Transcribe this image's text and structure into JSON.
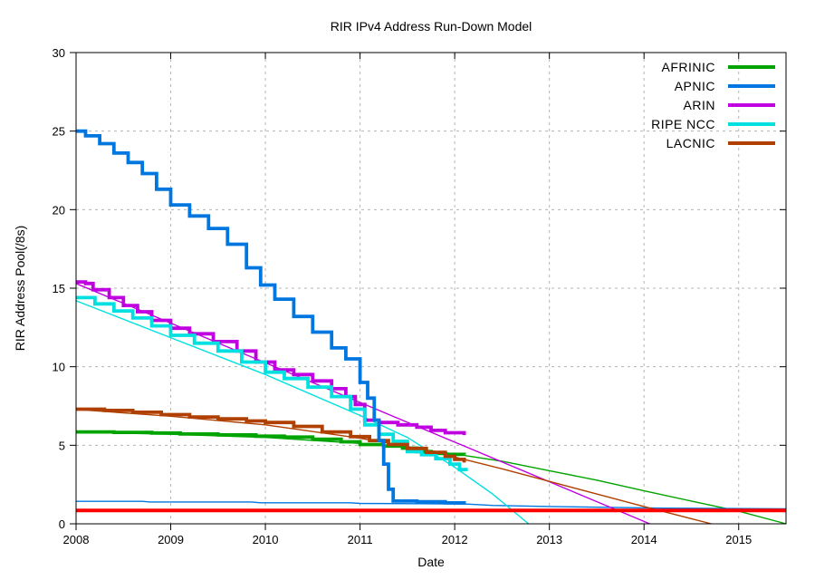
{
  "chart_data": {
    "type": "line",
    "title": "RIR IPv4 Address Run-Down Model",
    "xlabel": "Date",
    "ylabel": "RIR Address Pool(/8s)",
    "xlim": [
      2008,
      2015.5
    ],
    "ylim": [
      0,
      30
    ],
    "x_ticks": [
      2008,
      2009,
      2010,
      2011,
      2012,
      2013,
      2014,
      2015
    ],
    "y_ticks": [
      0,
      5,
      10,
      15,
      20,
      25,
      30
    ],
    "grid": "dashed-gray",
    "legend_position": "top-right-inside",
    "red_line": {
      "y": 0.85,
      "color": "#ff0000"
    },
    "series": [
      {
        "name": "AFRINIC",
        "color": "#00a400",
        "actual": [
          [
            2008,
            5.85
          ],
          [
            2008.4,
            5.82
          ],
          [
            2008.8,
            5.78
          ],
          [
            2009.1,
            5.72
          ],
          [
            2009.5,
            5.66
          ],
          [
            2009.9,
            5.58
          ],
          [
            2010.2,
            5.52
          ],
          [
            2010.5,
            5.38
          ],
          [
            2010.8,
            5.22
          ],
          [
            2011.0,
            5.05
          ],
          [
            2011.25,
            4.95
          ],
          [
            2011.45,
            4.82
          ],
          [
            2011.6,
            4.6
          ],
          [
            2011.75,
            4.48
          ],
          [
            2011.9,
            4.42
          ],
          [
            2012.1,
            4.4
          ]
        ],
        "model": [
          [
            2008,
            5.83
          ],
          [
            2009,
            5.7
          ],
          [
            2010,
            5.5
          ],
          [
            2011,
            5.12
          ],
          [
            2011.5,
            4.85
          ],
          [
            2012,
            4.45
          ],
          [
            2012.5,
            3.98
          ],
          [
            2013,
            3.38
          ],
          [
            2013.5,
            2.78
          ],
          [
            2014,
            2.1
          ],
          [
            2014.5,
            1.45
          ],
          [
            2015,
            0.8
          ],
          [
            2015.5,
            0
          ]
        ]
      },
      {
        "name": "APNIC",
        "color": "#0077e0",
        "actual": [
          [
            2008,
            25.0
          ],
          [
            2008.1,
            24.7
          ],
          [
            2008.25,
            24.2
          ],
          [
            2008.4,
            23.6
          ],
          [
            2008.55,
            23.0
          ],
          [
            2008.7,
            22.3
          ],
          [
            2008.85,
            21.3
          ],
          [
            2009.0,
            20.3
          ],
          [
            2009.2,
            19.6
          ],
          [
            2009.4,
            18.8
          ],
          [
            2009.6,
            17.8
          ],
          [
            2009.8,
            16.3
          ],
          [
            2009.95,
            15.2
          ],
          [
            2010.1,
            14.3
          ],
          [
            2010.3,
            13.2
          ],
          [
            2010.5,
            12.2
          ],
          [
            2010.7,
            11.2
          ],
          [
            2010.85,
            10.5
          ],
          [
            2011.0,
            9.0
          ],
          [
            2011.08,
            8.0
          ],
          [
            2011.15,
            6.6
          ],
          [
            2011.2,
            5.3
          ],
          [
            2011.25,
            3.8
          ],
          [
            2011.3,
            2.2
          ],
          [
            2011.35,
            1.45
          ],
          [
            2011.6,
            1.4
          ],
          [
            2011.9,
            1.33
          ],
          [
            2012.1,
            1.28
          ]
        ],
        "model": [
          [
            2008,
            1.43
          ],
          [
            2008.7,
            1.43
          ],
          [
            2008.78,
            1.39
          ],
          [
            2009.85,
            1.39
          ],
          [
            2009.95,
            1.34
          ],
          [
            2010.9,
            1.34
          ],
          [
            2011.0,
            1.3
          ],
          [
            2011.6,
            1.28
          ],
          [
            2012.15,
            1.25
          ],
          [
            2012.4,
            1.17
          ],
          [
            2013,
            1.1
          ],
          [
            2013.6,
            1.05
          ],
          [
            2014.2,
            1.0
          ],
          [
            2015.5,
            0.96
          ]
        ]
      },
      {
        "name": "ARIN",
        "color": "#c000e0",
        "actual": [
          [
            2008,
            15.4
          ],
          [
            2008.1,
            15.3
          ],
          [
            2008.18,
            14.9
          ],
          [
            2008.35,
            14.4
          ],
          [
            2008.5,
            13.9
          ],
          [
            2008.65,
            13.5
          ],
          [
            2008.8,
            12.95
          ],
          [
            2009.0,
            12.45
          ],
          [
            2009.2,
            12.1
          ],
          [
            2009.45,
            11.6
          ],
          [
            2009.7,
            11.0
          ],
          [
            2009.9,
            10.3
          ],
          [
            2010.1,
            9.8
          ],
          [
            2010.3,
            9.5
          ],
          [
            2010.5,
            9.1
          ],
          [
            2010.7,
            8.6
          ],
          [
            2010.85,
            8.1
          ],
          [
            2010.95,
            7.6
          ],
          [
            2011.05,
            6.6
          ],
          [
            2011.2,
            6.45
          ],
          [
            2011.4,
            6.3
          ],
          [
            2011.6,
            6.15
          ],
          [
            2011.75,
            5.95
          ],
          [
            2011.9,
            5.8
          ],
          [
            2012.1,
            5.65
          ]
        ],
        "model": [
          [
            2008,
            15.3
          ],
          [
            2014.06,
            0
          ]
        ]
      },
      {
        "name": "RIPE NCC",
        "color": "#00e0e0",
        "actual": [
          [
            2008,
            14.4
          ],
          [
            2008.2,
            14.0
          ],
          [
            2008.4,
            13.55
          ],
          [
            2008.6,
            13.1
          ],
          [
            2008.8,
            12.6
          ],
          [
            2009.0,
            12.0
          ],
          [
            2009.25,
            11.5
          ],
          [
            2009.5,
            11.0
          ],
          [
            2009.75,
            10.3
          ],
          [
            2010.0,
            9.65
          ],
          [
            2010.2,
            9.25
          ],
          [
            2010.45,
            8.7
          ],
          [
            2010.7,
            8.1
          ],
          [
            2010.9,
            7.3
          ],
          [
            2011.05,
            6.3
          ],
          [
            2011.2,
            5.7
          ],
          [
            2011.35,
            5.25
          ],
          [
            2011.5,
            4.6
          ],
          [
            2011.65,
            4.4
          ],
          [
            2011.8,
            4.15
          ],
          [
            2011.95,
            3.8
          ],
          [
            2012.05,
            3.45
          ],
          [
            2012.12,
            3.35
          ]
        ],
        "model": [
          [
            2008,
            14.2
          ],
          [
            2009,
            11.85
          ],
          [
            2010,
            9.5
          ],
          [
            2011,
            6.9
          ],
          [
            2011.5,
            5.5
          ],
          [
            2012,
            3.6
          ],
          [
            2012.4,
            1.9
          ],
          [
            2012.78,
            0
          ]
        ]
      },
      {
        "name": "LACNIC",
        "color": "#b04000",
        "actual": [
          [
            2008,
            7.3
          ],
          [
            2008.3,
            7.22
          ],
          [
            2008.6,
            7.1
          ],
          [
            2008.9,
            6.95
          ],
          [
            2009.2,
            6.8
          ],
          [
            2009.5,
            6.68
          ],
          [
            2009.8,
            6.55
          ],
          [
            2010.0,
            6.45
          ],
          [
            2010.3,
            6.2
          ],
          [
            2010.6,
            5.85
          ],
          [
            2010.9,
            5.55
          ],
          [
            2011.1,
            5.3
          ],
          [
            2011.3,
            5.05
          ],
          [
            2011.5,
            4.8
          ],
          [
            2011.7,
            4.55
          ],
          [
            2011.9,
            4.3
          ],
          [
            2012.0,
            4.1
          ],
          [
            2012.1,
            3.9
          ]
        ],
        "model": [
          [
            2008,
            7.28
          ],
          [
            2009,
            6.85
          ],
          [
            2010,
            6.3
          ],
          [
            2011,
            5.45
          ],
          [
            2011.5,
            4.92
          ],
          [
            2012,
            4.25
          ],
          [
            2012.5,
            3.5
          ],
          [
            2013,
            2.7
          ],
          [
            2013.5,
            1.9
          ],
          [
            2014,
            1.1
          ],
          [
            2014.71,
            0
          ]
        ]
      }
    ]
  }
}
